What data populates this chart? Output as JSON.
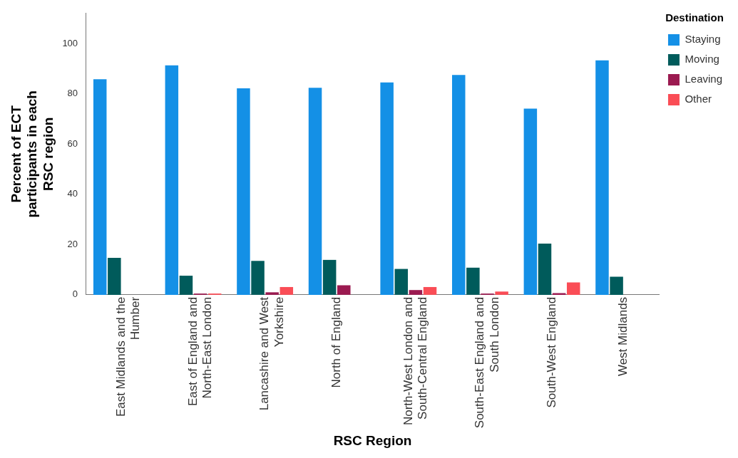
{
  "chart_data": {
    "type": "bar",
    "xlabel": "RSC Region",
    "ylabel": "Percent of ECT participants in each RSC region",
    "legend_title": "Destination",
    "legend": "right",
    "grid": false,
    "categories": [
      "East Midlands and the Humber",
      "East of England and North-East London",
      "Lancashire and West Yorkshire",
      "North of England",
      "North-West London and South-Central England",
      "South-East England and South London",
      "South-West England",
      "West Midlands"
    ],
    "series": [
      {
        "name": "Staying",
        "color": "#1490e6",
        "values": [
          85.8,
          91.3,
          82.2,
          82.4,
          84.5,
          87.5,
          74.1,
          93.3
        ]
      },
      {
        "name": "Moving",
        "color": "#005b5b",
        "values": [
          14.7,
          7.6,
          13.5,
          13.9,
          10.3,
          10.8,
          20.4,
          7.2
        ]
      },
      {
        "name": "Leaving",
        "color": "#9b1a50",
        "values": [
          null,
          0.5,
          1.0,
          3.8,
          1.9,
          0.5,
          0.7,
          null
        ]
      },
      {
        "name": "Other",
        "color": "#fa4d56",
        "values": [
          null,
          0.5,
          3.1,
          null,
          3.1,
          1.3,
          4.9,
          null
        ]
      }
    ],
    "ylim": [
      0,
      112
    ],
    "yticks": [
      0,
      20,
      40,
      60,
      80,
      100
    ]
  }
}
